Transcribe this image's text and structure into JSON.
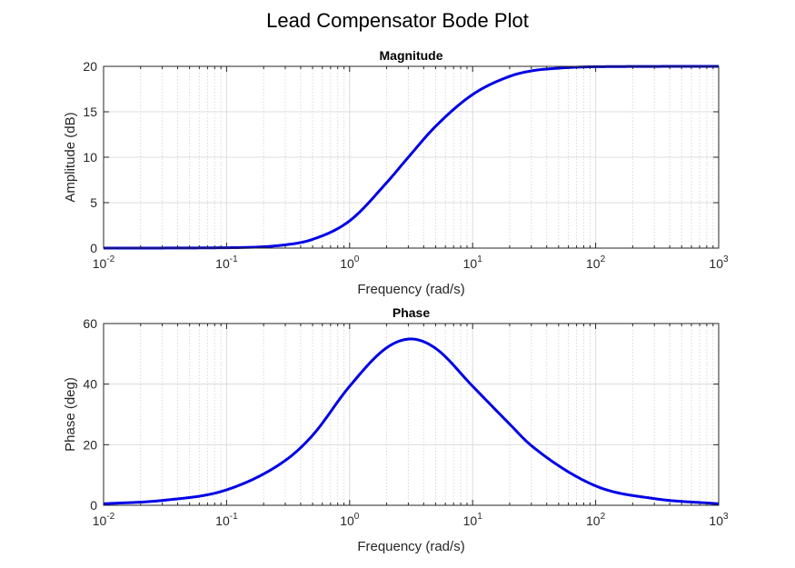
{
  "figure": {
    "title": "Lead Compensator Bode Plot"
  },
  "chart_data": [
    {
      "type": "line",
      "title": "Magnitude",
      "xlabel": "Frequency (rad/s)",
      "ylabel": "Amplitude (dB)",
      "xscale": "log",
      "xlim": [
        0.01,
        1000
      ],
      "ylim": [
        0,
        20
      ],
      "grid": true,
      "x_ticks": [
        "10-2",
        "10-1",
        "100",
        "101",
        "102",
        "103"
      ],
      "y_ticks": [
        "0",
        "5",
        "10",
        "15",
        "20"
      ],
      "series": [
        {
          "color": "#0000e6",
          "x": [
            0.01,
            0.1,
            0.3,
            0.5,
            1,
            2,
            3,
            5,
            10,
            20,
            30,
            50,
            100,
            1000
          ],
          "y": [
            0.0,
            0.04,
            0.36,
            0.96,
            3.0,
            7.2,
            10.0,
            13.4,
            16.9,
            18.9,
            19.5,
            19.8,
            19.96,
            20.0
          ]
        }
      ]
    },
    {
      "type": "line",
      "title": "Phase",
      "xlabel": "Frequency (rad/s)",
      "ylabel": "Phase (deg)",
      "xscale": "log",
      "xlim": [
        0.01,
        1000
      ],
      "ylim": [
        0,
        60
      ],
      "grid": true,
      "x_ticks": [
        "10-2",
        "10-1",
        "100",
        "101",
        "102",
        "103"
      ],
      "y_ticks": [
        "0",
        "20",
        "40",
        "60"
      ],
      "series": [
        {
          "color": "#0000e6",
          "x": [
            0.01,
            0.03,
            0.1,
            0.3,
            0.5,
            1,
            2,
            3.16,
            5,
            10,
            20,
            30,
            100,
            300,
            1000
          ],
          "y": [
            0.5,
            1.6,
            5.1,
            14.8,
            23.1,
            39.3,
            52.0,
            54.9,
            51.8,
            39.3,
            26.8,
            19.7,
            6.4,
            2.2,
            0.5
          ]
        }
      ]
    }
  ]
}
